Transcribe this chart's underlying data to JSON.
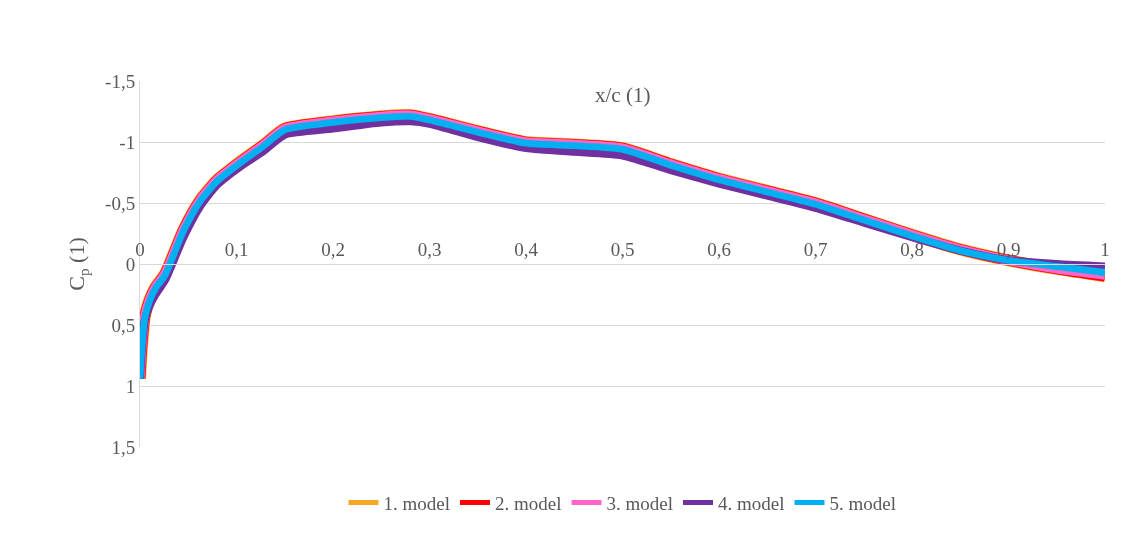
{
  "chart_data": {
    "type": "line",
    "xlabel": "x/c (1)",
    "ylabel": "C$_{p}$ (1)",
    "x": [
      0,
      0.002,
      0.005,
      0.01,
      0.016,
      0.026,
      0.045,
      0.062,
      0.08,
      0.104,
      0.127,
      0.15,
      0.2,
      0.25,
      0.28,
      0.3,
      0.35,
      0.4,
      0.45,
      0.5,
      0.55,
      0.6,
      0.65,
      0.7,
      0.75,
      0.8,
      0.85,
      0.9,
      0.95,
      1
    ],
    "series": [
      {
        "name": "1. model",
        "color": "#f5a623",
        "values": [
          0.94,
          0.68,
          0.43,
          0.29,
          0.19,
          0.08,
          -0.28,
          -0.52,
          -0.69,
          -0.84,
          -0.97,
          -1.11,
          -1.17,
          -1.21,
          -1.22,
          -1.19,
          -1.09,
          -1.0,
          -0.98,
          -0.95,
          -0.82,
          -0.7,
          -0.6,
          -0.5,
          -0.37,
          -0.24,
          -0.12,
          -0.03,
          0.04,
          0.1
        ]
      },
      {
        "name": "2. model",
        "color": "#ff0000",
        "values": [
          0.94,
          0.68,
          0.43,
          0.29,
          0.19,
          0.08,
          -0.28,
          -0.52,
          -0.69,
          -0.84,
          -0.97,
          -1.11,
          -1.17,
          -1.21,
          -1.22,
          -1.19,
          -1.09,
          -1.0,
          -0.98,
          -0.95,
          -0.82,
          -0.7,
          -0.6,
          -0.5,
          -0.37,
          -0.24,
          -0.12,
          -0.03,
          0.04,
          0.1
        ]
      },
      {
        "name": "3. model",
        "color": "#ff66cc",
        "values": [
          0.94,
          0.68,
          0.43,
          0.29,
          0.19,
          0.08,
          -0.28,
          -0.52,
          -0.69,
          -0.84,
          -0.97,
          -1.11,
          -1.17,
          -1.21,
          -1.22,
          -1.19,
          -1.09,
          -1.0,
          -0.98,
          -0.95,
          -0.82,
          -0.7,
          -0.6,
          -0.5,
          -0.37,
          -0.24,
          -0.12,
          -0.03,
          0.04,
          0.09
        ]
      },
      {
        "name": "4. model",
        "color": "#7030a0",
        "values": [
          0.94,
          0.68,
          0.46,
          0.34,
          0.25,
          0.13,
          -0.22,
          -0.47,
          -0.65,
          -0.8,
          -0.92,
          -1.06,
          -1.11,
          -1.16,
          -1.17,
          -1.15,
          -1.04,
          -0.95,
          -0.92,
          -0.89,
          -0.77,
          -0.66,
          -0.56,
          -0.46,
          -0.34,
          -0.22,
          -0.11,
          -0.03,
          0.0,
          0.02
        ]
      },
      {
        "name": "5. model",
        "color": "#00b0f0",
        "values": [
          0.94,
          0.68,
          0.44,
          0.3,
          0.2,
          0.09,
          -0.27,
          -0.51,
          -0.68,
          -0.83,
          -0.96,
          -1.1,
          -1.16,
          -1.2,
          -1.21,
          -1.18,
          -1.08,
          -0.99,
          -0.97,
          -0.94,
          -0.81,
          -0.69,
          -0.59,
          -0.49,
          -0.36,
          -0.23,
          -0.11,
          -0.03,
          0.02,
          0.07
        ]
      }
    ],
    "xlim": [
      0,
      1
    ],
    "xticks": [
      0,
      {
        "value": 0.1,
        "label": "0,1"
      },
      {
        "value": 0.2,
        "label": "0,2"
      },
      {
        "value": 0.3,
        "label": "0,3"
      },
      {
        "value": 0.4,
        "label": "0,4"
      },
      {
        "value": 0.5,
        "label": "0,5"
      },
      {
        "value": 0.6,
        "label": "0,6"
      },
      {
        "value": 0.7,
        "label": "0,7"
      },
      {
        "value": 0.8,
        "label": "0,8"
      },
      {
        "value": 0.9,
        "label": "0,9"
      },
      1
    ],
    "ylim": [
      1.5,
      -1.5
    ],
    "yticks": [
      {
        "value": -1.5,
        "label": "-1,5"
      },
      -1,
      {
        "value": -0.5,
        "label": "-0,5"
      },
      0,
      {
        "value": 0.5,
        "label": "0,5"
      },
      1,
      {
        "value": 1.5,
        "label": "1,5"
      }
    ],
    "grid": "y",
    "legend": "bottom",
    "line_style": "solid"
  }
}
